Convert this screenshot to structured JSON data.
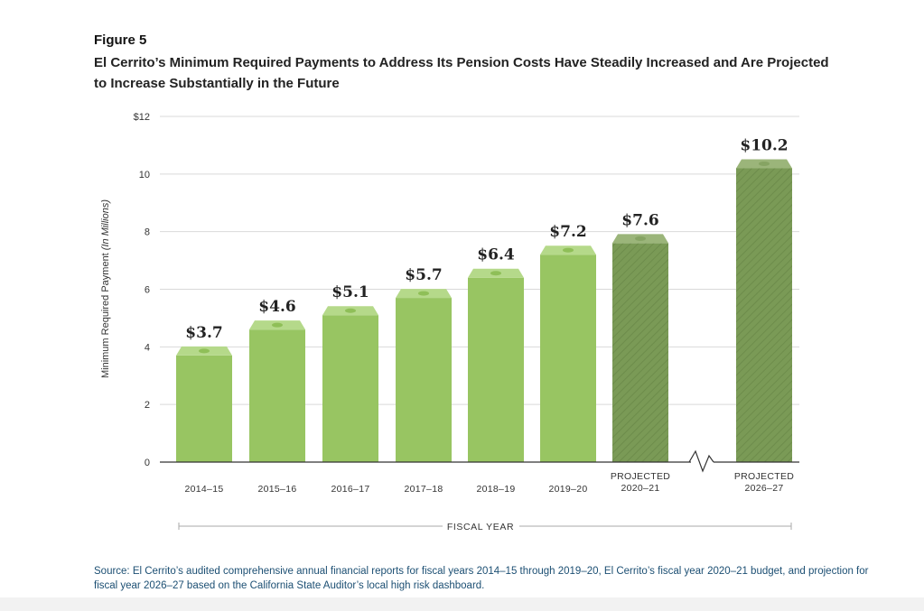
{
  "figure_label": "Figure 5",
  "chart_data": {
    "type": "bar",
    "title": "El Cerrito’s Minimum Required Payments to Address Its Pension Costs Have Steadily Increased and Are Projected to Increase Substantially in the Future",
    "categories": [
      "2014–15",
      "2015–16",
      "2016–17",
      "2017–18",
      "2018–19",
      "2019–20",
      "PROJECTED\n2020–21",
      "PROJECTED\n2026–27"
    ],
    "values": [
      3.7,
      4.6,
      5.1,
      5.7,
      6.4,
      7.2,
      7.6,
      10.2
    ],
    "data_labels": [
      "$3.7",
      "$4.6",
      "$5.1",
      "$5.7",
      "$6.4",
      "$7.2",
      "$7.6",
      "$10.2"
    ],
    "projected": [
      false,
      false,
      false,
      false,
      false,
      false,
      true,
      true
    ],
    "ylabel": "Minimum Required Payment",
    "ylabel_suffix": "(In Millions)",
    "xlabel": "FISCAL YEAR",
    "ylim": [
      0,
      12
    ],
    "yticks": [
      0,
      2,
      4,
      6,
      8,
      10,
      12
    ],
    "ytick_labels": [
      "0",
      "2",
      "4",
      "6",
      "8",
      "10",
      "$12"
    ],
    "grid": true,
    "colors": {
      "actual": "#98c562",
      "projected": "#7a9a56",
      "cap_actual": "#b5d98a",
      "cap_projected": "#9bb57a"
    }
  },
  "source": "Source:  El Cerrito’s audited comprehensive annual financial reports for fiscal years 2014–15 through 2019–20, El Cerrito’s fiscal year 2020–21 budget, and projection for fiscal year 2026–27 based on the California State Auditor’s local high risk dashboard."
}
